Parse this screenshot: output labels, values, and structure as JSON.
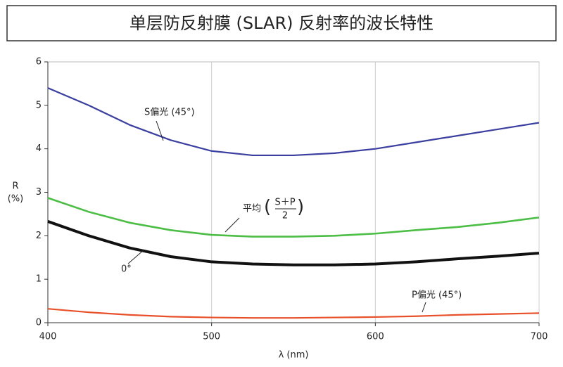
{
  "chart_data": {
    "type": "line",
    "title": "单层防反射膜 (SLAR) 反射率的波长特性",
    "x_label": "λ (nm)",
    "y_label": [
      "R",
      "(%)"
    ],
    "x": [
      400,
      425,
      450,
      475,
      500,
      525,
      550,
      575,
      600,
      625,
      650,
      675,
      700
    ],
    "series": [
      {
        "name": "S偏光 (45°)",
        "color": "#3b3fa0",
        "values": [
          5.4,
          5.0,
          4.55,
          4.2,
          3.95,
          3.85,
          3.85,
          3.9,
          4.0,
          4.15,
          4.3,
          4.45,
          4.6
        ]
      },
      {
        "name": "平均",
        "name_fraction": [
          "S＋P",
          "2"
        ],
        "color": "#4cbd45",
        "values": [
          2.87,
          2.55,
          2.3,
          2.13,
          2.02,
          1.98,
          1.98,
          2.0,
          2.05,
          2.13,
          2.2,
          2.3,
          2.42
        ]
      },
      {
        "name": "0°",
        "color": "#111111",
        "values": [
          2.33,
          2.0,
          1.72,
          1.52,
          1.4,
          1.35,
          1.33,
          1.33,
          1.35,
          1.4,
          1.47,
          1.53,
          1.6
        ]
      },
      {
        "name": "P偏光 (45°)",
        "color": "#e8502a",
        "values": [
          0.32,
          0.24,
          0.18,
          0.14,
          0.12,
          0.11,
          0.11,
          0.12,
          0.13,
          0.15,
          0.18,
          0.2,
          0.22
        ]
      }
    ],
    "xlim": [
      400,
      700
    ],
    "xticks": [
      400,
      500,
      600,
      700
    ],
    "ylim": [
      0,
      6
    ],
    "yticks": [
      0,
      1,
      2,
      3,
      4,
      5,
      6
    ],
    "grid": "x"
  }
}
